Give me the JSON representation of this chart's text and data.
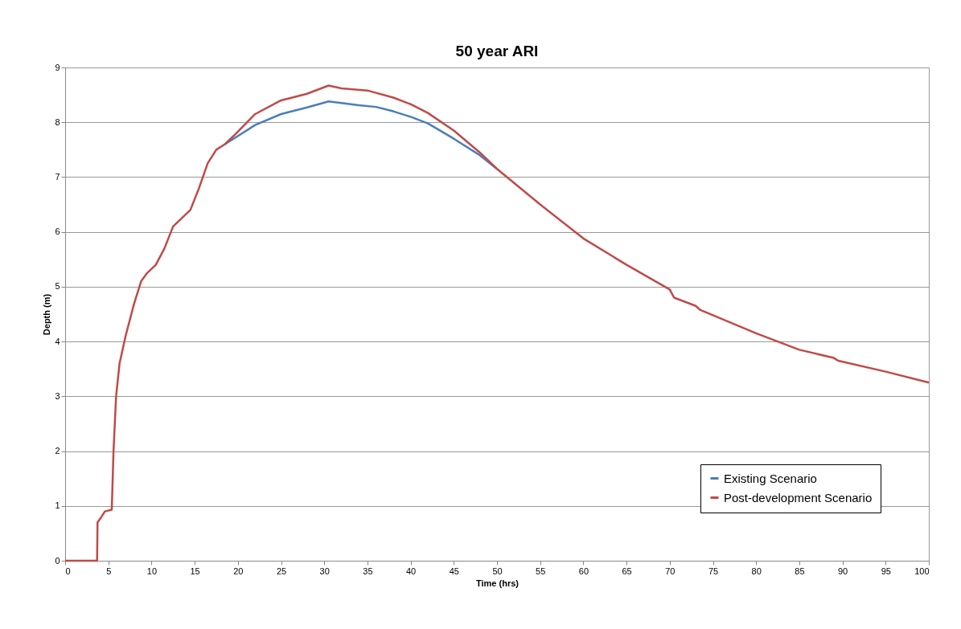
{
  "chart_data": {
    "type": "line",
    "title": "50 year ARI",
    "xlabel": "Time (hrs)",
    "ylabel": "Depth (m)",
    "xlim": [
      0,
      100
    ],
    "xticks": [
      0,
      5,
      10,
      15,
      20,
      25,
      30,
      35,
      40,
      45,
      50,
      55,
      60,
      65,
      70,
      75,
      80,
      85,
      90,
      95,
      100
    ],
    "ylim": [
      0,
      9
    ],
    "yticks": [
      0,
      1,
      2,
      3,
      4,
      5,
      6,
      7,
      8,
      9
    ],
    "grid": "y",
    "legend": "bottom right",
    "line_style": "solid",
    "series": [
      {
        "name": "Existing Scenario",
        "color": "#4a7ebb",
        "x": [
          18.5,
          19.5,
          22,
          25,
          28,
          30.5,
          32,
          34,
          36,
          38,
          40,
          42,
          45,
          48,
          50
        ],
        "values": [
          7.6,
          7.7,
          7.95,
          8.15,
          8.27,
          8.38,
          8.35,
          8.31,
          8.28,
          8.2,
          8.1,
          7.98,
          7.7,
          7.4,
          7.15
        ]
      },
      {
        "name": "Post-development Scenario",
        "color": "#be4b48",
        "x": [
          0,
          3.7,
          3.75,
          4.2,
          4.6,
          5.4,
          5.6,
          5.9,
          6.3,
          7,
          8,
          8.8,
          9.5,
          10.5,
          11.5,
          12.5,
          13.5,
          14.5,
          15.5,
          16.5,
          17.5,
          18.5,
          19.5,
          22,
          25,
          28,
          30.5,
          32,
          35,
          38,
          40,
          42,
          45,
          48,
          50,
          55,
          60,
          65,
          70,
          70.5,
          73,
          73.5,
          80,
          85,
          89,
          89.5,
          95,
          100
        ],
        "values": [
          0,
          0,
          0.7,
          0.8,
          0.9,
          0.93,
          2.0,
          3.0,
          3.6,
          4.1,
          4.7,
          5.1,
          5.25,
          5.4,
          5.7,
          6.1,
          6.25,
          6.4,
          6.8,
          7.25,
          7.5,
          7.6,
          7.75,
          8.15,
          8.4,
          8.52,
          8.67,
          8.62,
          8.58,
          8.45,
          8.33,
          8.17,
          7.85,
          7.45,
          7.15,
          6.5,
          5.88,
          5.4,
          4.95,
          4.8,
          4.65,
          4.58,
          4.15,
          3.85,
          3.7,
          3.65,
          3.45,
          3.25
        ]
      }
    ]
  }
}
